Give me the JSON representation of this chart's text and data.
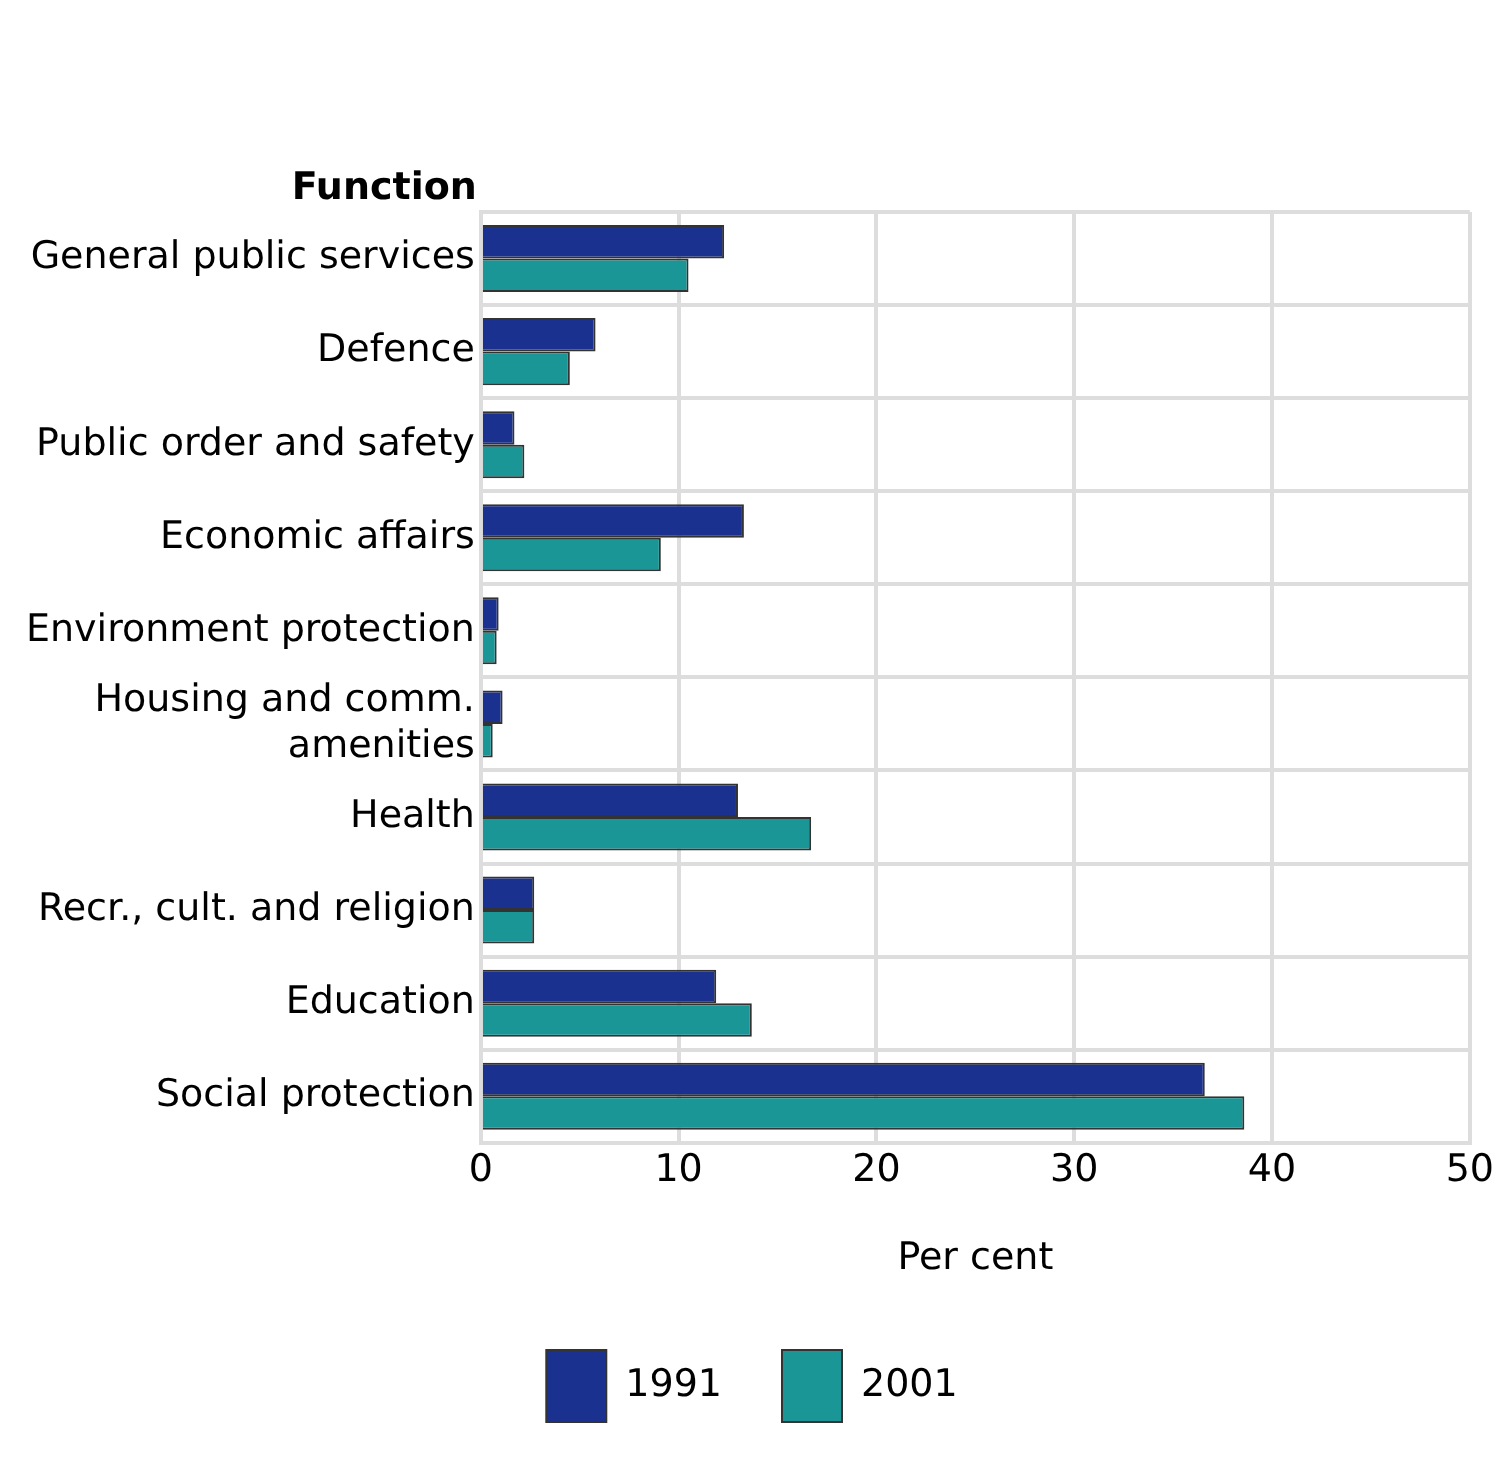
{
  "chart_data": {
    "type": "bar",
    "orientation": "horizontal",
    "ylabel": "Function",
    "xlabel": "Per cent",
    "categories": [
      "General public services",
      "Defence",
      "Public order and safety",
      "Economic affairs",
      "Environment protection",
      "Housing and comm.\namenities",
      "Health",
      "Recr., cult. and religion",
      "Education",
      "Social protection"
    ],
    "series": [
      {
        "name": "1991",
        "color": "#1a318f",
        "values": [
          12.3,
          5.8,
          1.7,
          13.3,
          0.9,
          1.1,
          13.0,
          2.7,
          11.9,
          36.6
        ]
      },
      {
        "name": "2001",
        "color": "#1a9696",
        "values": [
          10.5,
          4.5,
          2.2,
          9.1,
          0.8,
          0.6,
          16.7,
          2.7,
          13.7,
          38.6
        ]
      }
    ],
    "xlim": [
      0,
      50
    ],
    "xticks": [
      0,
      10,
      20,
      30,
      40,
      50
    ],
    "grid": true,
    "legend": "bottom"
  }
}
